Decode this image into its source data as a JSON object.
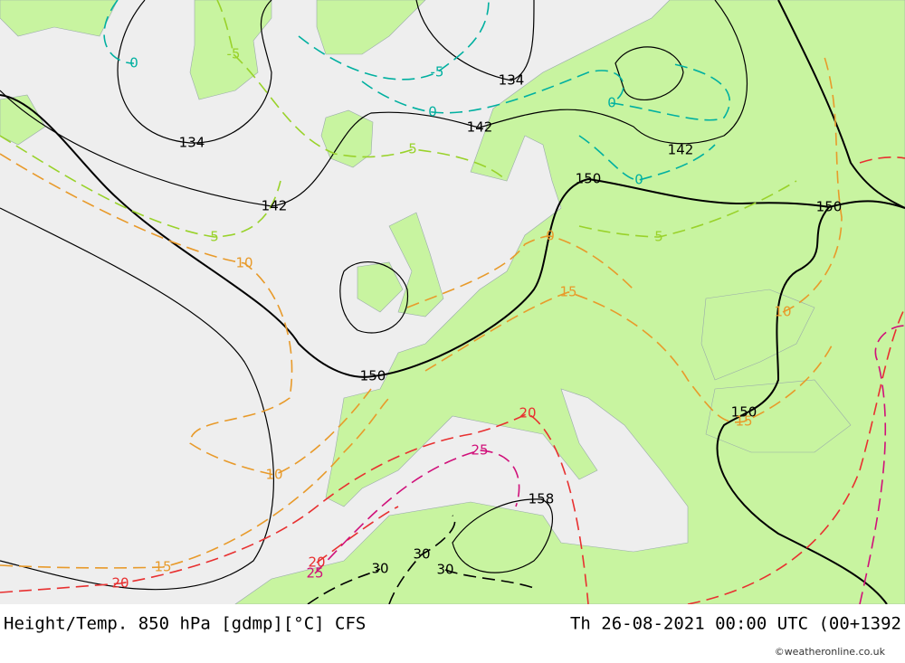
{
  "map": {
    "caption": "Height/Temp. 850 hPa [gdmp][°C] CFS",
    "valid_time": "Th 26-08-2021 00:00 UTC (00+1392",
    "credit": "©weatheronline.co.uk",
    "height_labels": [
      "134",
      "142",
      "142",
      "134",
      "142",
      "150",
      "150",
      "150",
      "150",
      "158"
    ],
    "temperature_labels": [
      "-5",
      "0",
      "-5",
      "0",
      "5",
      "0",
      "0",
      "5",
      "5",
      "10",
      "0",
      "15",
      "10",
      "10",
      "15",
      "20",
      "25",
      "15",
      "20",
      "20",
      "25",
      "30",
      "30",
      "30"
    ]
  }
}
